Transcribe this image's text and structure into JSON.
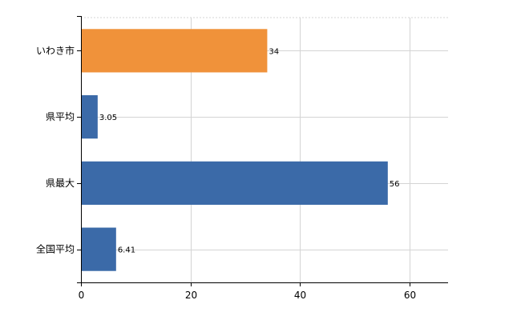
{
  "chart_data": {
    "type": "bar",
    "orientation": "horizontal",
    "categories": [
      "いわき市",
      "県平均",
      "県最大",
      "全国平均"
    ],
    "values": [
      34,
      3.05,
      56,
      6.41
    ],
    "data_labels": [
      "34",
      "3.05",
      "56",
      "6.41"
    ],
    "bar_colors": [
      "#f0923a",
      "#3b6aa8",
      "#3b6aa8",
      "#3b6aa8"
    ],
    "x_ticks": [
      0,
      20,
      40,
      60
    ],
    "xlim": [
      0,
      67
    ],
    "title": "",
    "xlabel": "",
    "ylabel": "",
    "grid": true
  }
}
